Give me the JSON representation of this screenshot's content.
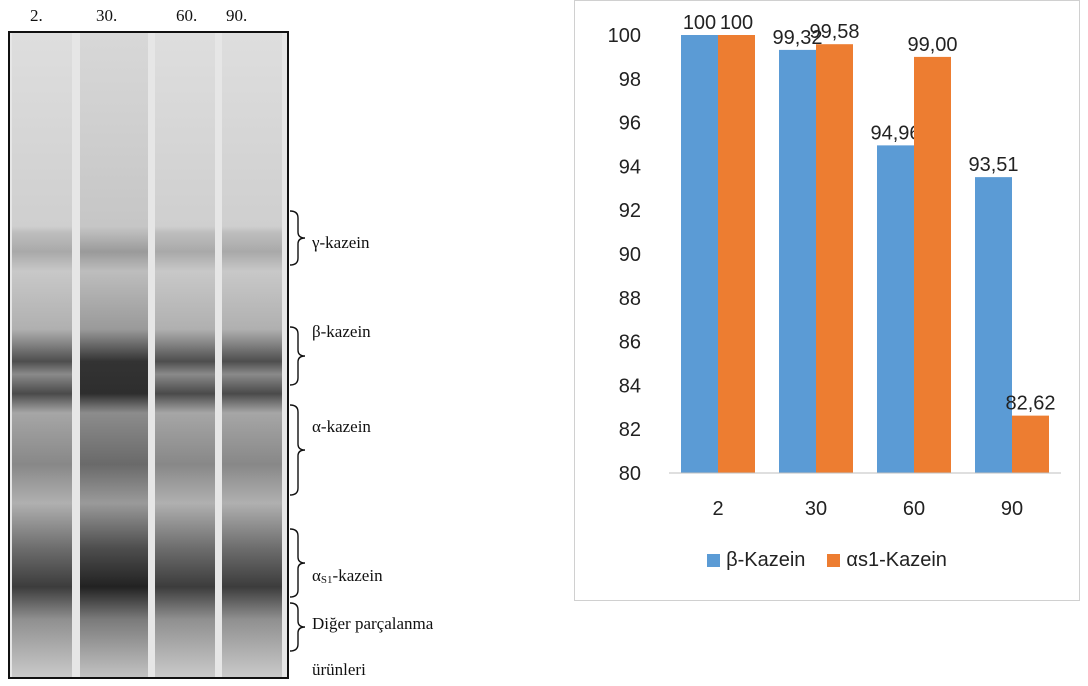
{
  "gel": {
    "lanes": [
      "2.",
      "30.",
      "60.",
      "90."
    ],
    "bands": {
      "gamma": "γ-kazein",
      "beta": "β-kazein",
      "alpha": "α-kazein",
      "alpha_s1_prefix": "α",
      "alpha_s1_sub": "S1",
      "alpha_s1_suffix": "-kazein",
      "other_1": "Diğer parçalanma",
      "other_2": "ürünleri"
    }
  },
  "colors": {
    "beta": "#5B9BD5",
    "alpha_s1": "#ED7D31"
  },
  "chart_data": {
    "type": "bar",
    "categories": [
      "2",
      "30",
      "60",
      "90"
    ],
    "series": [
      {
        "name": "β-Kazein",
        "values": [
          100,
          99.32,
          94.96,
          93.51
        ],
        "labels": [
          "100",
          "99,32",
          "94,96",
          "93,51"
        ]
      },
      {
        "name": "αs1-Kazein",
        "values": [
          100,
          99.58,
          99.0,
          82.62
        ],
        "labels": [
          "100",
          "99,58",
          "99,00",
          "82,62"
        ]
      }
    ],
    "ylim": [
      80,
      100
    ],
    "yticks": [
      80,
      82,
      84,
      86,
      88,
      90,
      92,
      94,
      96,
      98,
      100
    ],
    "legend": "bottom",
    "grid": false
  }
}
